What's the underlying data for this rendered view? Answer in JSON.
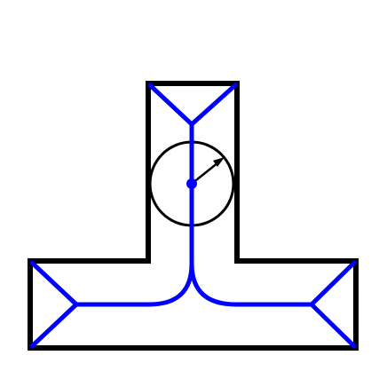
{
  "diagram": {
    "kind": "medial-axis of T-shaped polygon with inscribed circle",
    "colors": {
      "background": "#ffffff",
      "outline": "#000000",
      "skeleton": "#0000ff",
      "circle": "#000000",
      "arrow": "#000000",
      "center_point": "#0000ff"
    }
  }
}
